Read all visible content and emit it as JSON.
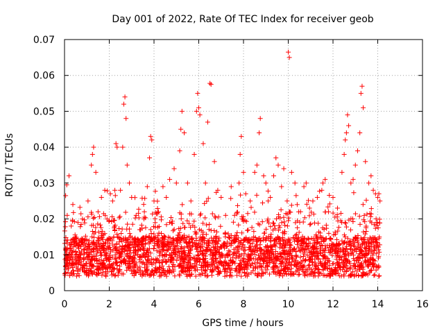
{
  "chart_data": {
    "type": "scatter",
    "title": "Day 001 of 2022, Rate Of TEC Index for receiver geob",
    "xlabel": "GPS time / hours",
    "ylabel": "ROTI / TECUs",
    "xlim": [
      0,
      16
    ],
    "ylim": [
      0,
      0.07
    ],
    "x_ticks": [
      0,
      2,
      4,
      6,
      8,
      10,
      12,
      14,
      16
    ],
    "y_ticks": [
      0,
      0.01,
      0.02,
      0.03,
      0.04,
      0.05,
      0.06,
      0.07
    ],
    "x_tick_labels": [
      "0",
      "2",
      "4",
      "6",
      "8",
      "10",
      "12",
      "14",
      "16"
    ],
    "y_tick_labels": [
      "0",
      "0.01",
      "0.02",
      "0.03",
      "0.04",
      "0.05",
      "0.06",
      "0.07"
    ],
    "grid": true,
    "marker": "+",
    "color": "#ff0000",
    "data_x_range": [
      0,
      14.1
    ],
    "series": [
      {
        "name": "ROTI",
        "points": [
          [
            0.05,
            0.0265
          ],
          [
            0.1,
            0.0295
          ],
          [
            0.2,
            0.032
          ],
          [
            0.12,
            0.021
          ],
          [
            0.3,
            0.018
          ],
          [
            0.6,
            0.019
          ],
          [
            0.8,
            0.02
          ],
          [
            1.05,
            0.025
          ],
          [
            1.2,
            0.035
          ],
          [
            1.25,
            0.038
          ],
          [
            1.3,
            0.04
          ],
          [
            1.4,
            0.033
          ],
          [
            1.5,
            0.022
          ],
          [
            1.65,
            0.026
          ],
          [
            1.8,
            0.028
          ],
          [
            1.9,
            0.02
          ],
          [
            2.05,
            0.027
          ],
          [
            2.15,
            0.025
          ],
          [
            2.25,
            0.028
          ],
          [
            2.3,
            0.041
          ],
          [
            2.35,
            0.04
          ],
          [
            2.5,
            0.028
          ],
          [
            2.6,
            0.04
          ],
          [
            2.65,
            0.052
          ],
          [
            2.7,
            0.054
          ],
          [
            2.75,
            0.048
          ],
          [
            2.8,
            0.035
          ],
          [
            2.9,
            0.03
          ],
          [
            3.0,
            0.026
          ],
          [
            3.2,
            0.021
          ],
          [
            3.4,
            0.017
          ],
          [
            3.55,
            0.02
          ],
          [
            3.7,
            0.029
          ],
          [
            3.8,
            0.037
          ],
          [
            3.85,
            0.043
          ],
          [
            3.9,
            0.042
          ],
          [
            4.0,
            0.025
          ],
          [
            4.2,
            0.022
          ],
          [
            4.4,
            0.029
          ],
          [
            4.55,
            0.026
          ],
          [
            4.7,
            0.031
          ],
          [
            4.9,
            0.034
          ],
          [
            5.0,
            0.03
          ],
          [
            5.15,
            0.039
          ],
          [
            5.2,
            0.045
          ],
          [
            5.25,
            0.05
          ],
          [
            5.35,
            0.044
          ],
          [
            5.5,
            0.03
          ],
          [
            5.65,
            0.025
          ],
          [
            5.8,
            0.038
          ],
          [
            5.9,
            0.05
          ],
          [
            5.95,
            0.055
          ],
          [
            6.0,
            0.051
          ],
          [
            6.05,
            0.049
          ],
          [
            6.2,
            0.041
          ],
          [
            6.3,
            0.03
          ],
          [
            6.4,
            0.047
          ],
          [
            6.5,
            0.0578
          ],
          [
            6.55,
            0.0575
          ],
          [
            6.7,
            0.036
          ],
          [
            6.85,
            0.028
          ],
          [
            7.0,
            0.026
          ],
          [
            7.2,
            0.021
          ],
          [
            7.45,
            0.029
          ],
          [
            7.6,
            0.021
          ],
          [
            7.8,
            0.03
          ],
          [
            7.85,
            0.038
          ],
          [
            7.9,
            0.043
          ],
          [
            8.0,
            0.033
          ],
          [
            8.1,
            0.027
          ],
          [
            8.3,
            0.025
          ],
          [
            8.5,
            0.033
          ],
          [
            8.6,
            0.035
          ],
          [
            8.7,
            0.044
          ],
          [
            8.75,
            0.048
          ],
          [
            8.9,
            0.032
          ],
          [
            9.0,
            0.03
          ],
          [
            9.1,
            0.025
          ],
          [
            9.2,
            0.026
          ],
          [
            9.35,
            0.032
          ],
          [
            9.45,
            0.037
          ],
          [
            9.55,
            0.035
          ],
          [
            9.7,
            0.029
          ],
          [
            9.8,
            0.034
          ],
          [
            9.95,
            0.025
          ],
          [
            10.0,
            0.0665
          ],
          [
            10.05,
            0.065
          ],
          [
            10.15,
            0.033
          ],
          [
            10.3,
            0.03
          ],
          [
            10.4,
            0.024
          ],
          [
            10.55,
            0.022
          ],
          [
            10.7,
            0.029
          ],
          [
            10.8,
            0.03
          ],
          [
            10.95,
            0.023
          ],
          [
            11.1,
            0.025
          ],
          [
            11.3,
            0.026
          ],
          [
            11.5,
            0.028
          ],
          [
            11.55,
            0.03
          ],
          [
            11.65,
            0.031
          ],
          [
            11.8,
            0.022
          ],
          [
            12.0,
            0.026
          ],
          [
            12.2,
            0.023
          ],
          [
            12.4,
            0.033
          ],
          [
            12.5,
            0.038
          ],
          [
            12.55,
            0.042
          ],
          [
            12.6,
            0.044
          ],
          [
            12.65,
            0.049
          ],
          [
            12.7,
            0.046
          ],
          [
            12.8,
            0.03
          ],
          [
            12.9,
            0.031
          ],
          [
            13.0,
            0.035
          ],
          [
            13.1,
            0.039
          ],
          [
            13.2,
            0.044
          ],
          [
            13.25,
            0.055
          ],
          [
            13.3,
            0.057
          ],
          [
            13.35,
            0.051
          ],
          [
            13.45,
            0.036
          ],
          [
            13.6,
            0.03
          ],
          [
            13.7,
            0.032
          ],
          [
            13.8,
            0.028
          ],
          [
            13.9,
            0.027
          ],
          [
            14.0,
            0.026
          ],
          [
            14.05,
            0.027
          ],
          [
            14.1,
            0.025
          ]
        ]
      }
    ]
  }
}
